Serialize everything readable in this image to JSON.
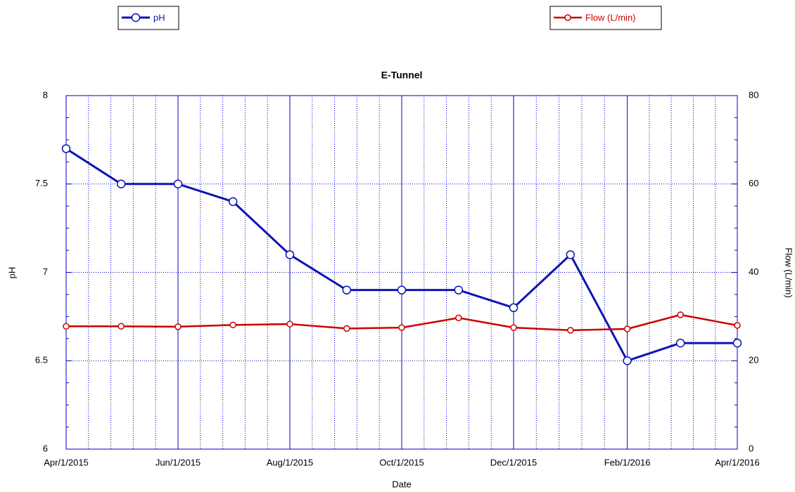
{
  "chart_data": {
    "type": "line",
    "title": "E-Tunnel",
    "x_label": "Date",
    "y_label": "pH",
    "y2_label": "Flow (L/min)",
    "x": [
      "2015-04-01",
      "2015-05-01",
      "2015-06-01",
      "2015-07-01",
      "2015-08-01",
      "2015-09-01",
      "2015-10-01",
      "2015-11-01",
      "2015-12-01",
      "2016-01-01",
      "2016-02-01",
      "2016-03-01",
      "2016-04-01"
    ],
    "series": [
      {
        "name": "pH",
        "color": "#0a14b4",
        "values": [
          7.7,
          7.5,
          7.5,
          7.4,
          7.1,
          6.9,
          6.9,
          6.9,
          6.8,
          7.1,
          6.5,
          6.6,
          6.6
        ]
      },
      {
        "name": "Flow (L/min)",
        "color": "#cc0000",
        "axis": "y2",
        "values": [
          27.8,
          27.8,
          27.7,
          28.1,
          28.3,
          27.3,
          27.5,
          29.7,
          27.5,
          26.9,
          27.2,
          30.4,
          28.0
        ]
      }
    ],
    "xlim": [
      "2015-04-01",
      "2016-04-01"
    ],
    "xticks": [
      {
        "value": "2015-04-01",
        "label": "Apr/1/2015"
      },
      {
        "value": "2015-06-01",
        "label": "Jun/1/2015"
      },
      {
        "value": "2015-08-01",
        "label": "Aug/1/2015"
      },
      {
        "value": "2015-10-01",
        "label": "Oct/1/2015"
      },
      {
        "value": "2015-12-01",
        "label": "Dec/1/2015"
      },
      {
        "value": "2016-02-01",
        "label": "Feb/1/2016"
      },
      {
        "value": "2016-04-01",
        "label": "Apr/1/2016"
      }
    ],
    "ylim": [
      6,
      8
    ],
    "yticks": [
      6,
      6.5,
      7,
      7.5,
      8
    ],
    "y2lim": [
      0,
      80
    ],
    "y2ticks": [
      0,
      20,
      40,
      60,
      80
    ],
    "grid": true
  }
}
